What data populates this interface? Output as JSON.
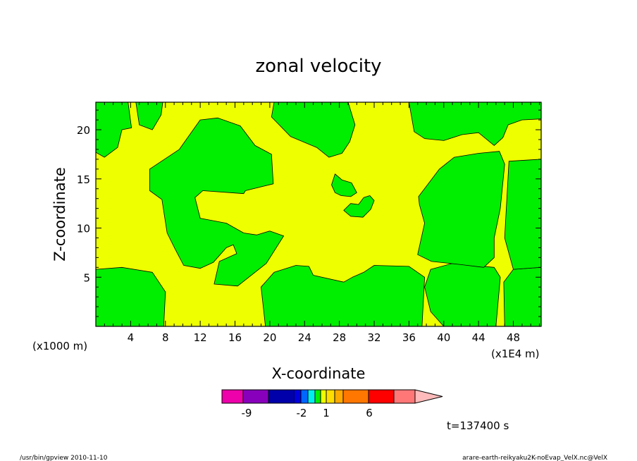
{
  "chart_data": {
    "type": "heatmap",
    "title": "zonal velocity",
    "xlabel": "X-coordinate",
    "ylabel": "Z-coordinate",
    "x_unit": "(x1000 m)",
    "x_scale_note": "(x1E4 m)",
    "x_ticks": [
      "4",
      "8",
      "12",
      "16",
      "20",
      "24",
      "28",
      "32",
      "36",
      "40",
      "44",
      "48"
    ],
    "y_ticks": [
      "5",
      "10",
      "15",
      "20"
    ],
    "xlim": [
      0,
      51.2
    ],
    "ylim": [
      0,
      22.8
    ],
    "background_color": "#eeff00",
    "regions_color": "#00ee00",
    "regions": [
      {
        "range": "0 to 1",
        "points": [
          [
            0,
            0
          ],
          [
            7.8,
            0
          ],
          [
            8,
            3.5
          ],
          [
            6.5,
            5.5
          ],
          [
            3,
            6
          ],
          [
            0,
            5.8
          ]
        ]
      },
      {
        "range": "0 to 1",
        "points": [
          [
            0,
            22.8
          ],
          [
            0,
            17.7
          ],
          [
            1,
            17.2
          ],
          [
            2.5,
            18.2
          ],
          [
            3,
            20
          ],
          [
            4.1,
            20.2
          ],
          [
            3.7,
            22.8
          ]
        ]
      },
      {
        "range": "0 to 1",
        "points": [
          [
            7.7,
            22.8
          ],
          [
            7.5,
            21.5
          ],
          [
            6.5,
            20
          ],
          [
            5,
            20.5
          ],
          [
            4.6,
            22.8
          ]
        ]
      },
      {
        "range": "0 to 1",
        "points": [
          [
            20,
            0
          ],
          [
            37.5,
            0
          ],
          [
            37.8,
            5
          ],
          [
            36,
            6.1
          ],
          [
            32,
            6.2
          ],
          [
            30.8,
            5.5
          ],
          [
            29.5,
            5
          ],
          [
            28.5,
            4.5
          ],
          [
            25,
            5.2
          ],
          [
            24.5,
            6.1
          ],
          [
            23,
            6.2
          ],
          [
            20.5,
            5.5
          ],
          [
            19,
            4
          ],
          [
            19.5,
            0
          ]
        ]
      },
      {
        "range": "0 to 1",
        "points": [
          [
            40,
            0
          ],
          [
            38.5,
            1.5
          ],
          [
            37.8,
            4
          ],
          [
            38.5,
            5.8
          ],
          [
            41,
            6.4
          ],
          [
            45.8,
            6
          ],
          [
            46.5,
            5
          ],
          [
            46,
            0
          ]
        ]
      },
      {
        "range": "0 to 1",
        "points": [
          [
            47,
            0
          ],
          [
            51.2,
            0
          ],
          [
            51.2,
            6
          ],
          [
            48,
            5.8
          ],
          [
            46.9,
            4.5
          ]
        ]
      },
      {
        "range": "0 to 1",
        "points": [
          [
            12,
            21
          ],
          [
            9.6,
            18
          ],
          [
            6.2,
            16
          ],
          [
            6.2,
            13.8
          ],
          [
            7.6,
            12.9
          ],
          [
            8.2,
            9.5
          ],
          [
            9.1,
            7.9
          ],
          [
            10.1,
            6.2
          ],
          [
            12,
            5.9
          ],
          [
            13.5,
            6.5
          ],
          [
            15,
            8
          ],
          [
            15.8,
            8.3
          ],
          [
            16.2,
            7.4
          ],
          [
            14.2,
            6.6
          ],
          [
            13.6,
            4.3
          ],
          [
            16.3,
            4.1
          ],
          [
            19.6,
            6.4
          ],
          [
            21.6,
            9.2
          ],
          [
            20,
            9.7
          ],
          [
            18.5,
            9.3
          ],
          [
            17,
            9.5
          ],
          [
            15,
            10.5
          ],
          [
            12,
            11
          ],
          [
            11.4,
            13.1
          ],
          [
            12.3,
            13.8
          ],
          [
            17,
            13.5
          ],
          [
            17.2,
            13.8
          ],
          [
            20.4,
            14.5
          ],
          [
            20.2,
            17.5
          ],
          [
            18.3,
            18.4
          ],
          [
            16.6,
            20.4
          ],
          [
            14,
            21.2
          ]
        ]
      },
      {
        "range": "0 to 1",
        "points": [
          [
            20.5,
            22.8
          ],
          [
            20.2,
            21.3
          ],
          [
            22.4,
            19.3
          ],
          [
            25.4,
            18.2
          ],
          [
            26.8,
            17.2
          ],
          [
            28.3,
            17.6
          ],
          [
            29.2,
            18.8
          ],
          [
            29.8,
            20.5
          ],
          [
            29,
            22.8
          ]
        ]
      },
      {
        "range": "0 to 1",
        "points": [
          [
            36,
            22.8
          ],
          [
            36.6,
            19.8
          ],
          [
            37.8,
            19.1
          ],
          [
            40,
            18.9
          ],
          [
            42.1,
            19.5
          ],
          [
            44,
            19.7
          ],
          [
            45.8,
            18.4
          ],
          [
            46.8,
            19.2
          ],
          [
            47.4,
            20.5
          ],
          [
            49,
            21
          ],
          [
            51.2,
            21.1
          ],
          [
            51.2,
            22.8
          ]
        ]
      },
      {
        "range": "0 to 1",
        "points": [
          [
            27.5,
            15.5
          ],
          [
            28.3,
            14.9
          ],
          [
            29.4,
            14.6
          ],
          [
            30,
            13.6
          ],
          [
            29.3,
            13.2
          ],
          [
            28.2,
            13.3
          ],
          [
            27.5,
            13.6
          ],
          [
            27.1,
            14.4
          ]
        ]
      },
      {
        "range": "0 to 1",
        "points": [
          [
            29.3,
            11.2
          ],
          [
            30.7,
            11.1
          ],
          [
            31.6,
            11.9
          ],
          [
            32,
            12.8
          ],
          [
            31.5,
            13.3
          ],
          [
            30.8,
            13.1
          ],
          [
            30.2,
            12.4
          ],
          [
            29.3,
            12.5
          ],
          [
            28.5,
            11.8
          ]
        ]
      },
      {
        "range": "0 to 1",
        "points": [
          [
            39.5,
            16
          ],
          [
            41.2,
            17.2
          ],
          [
            44,
            17.6
          ],
          [
            46.4,
            17.8
          ],
          [
            47,
            16.5
          ],
          [
            46.5,
            12
          ],
          [
            45.8,
            9
          ],
          [
            45.8,
            7
          ],
          [
            44.6,
            6
          ],
          [
            41.8,
            6.3
          ],
          [
            38.6,
            6.6
          ],
          [
            37,
            7.3
          ],
          [
            37.8,
            10.5
          ],
          [
            37.2,
            12.4
          ],
          [
            37.1,
            13.2
          ]
        ]
      },
      {
        "range": "0 to 1",
        "points": [
          [
            47.5,
            16.8
          ],
          [
            51.2,
            17
          ],
          [
            51.2,
            6
          ],
          [
            48,
            5.8
          ],
          [
            47,
            9
          ]
        ]
      }
    ],
    "colorbar": {
      "colors": [
        "#ee00aa",
        "#8800bb",
        "#0000aa",
        "#0000dd",
        "#0066ff",
        "#00eeee",
        "#00ee00",
        "#eeff00",
        "#ffdd00",
        "#ffaa00",
        "#ff7700",
        "#ff0000",
        "#ff7777",
        "#ffbbbb"
      ],
      "tick_labels": [
        "-9",
        "-2",
        "1",
        "6"
      ]
    },
    "time_label": "t=137400 s",
    "footer_left": "/usr/bin/gpview  2010-11-10",
    "footer_right": "arare-earth-reikyaku2K-noEvap_VelX.nc@VelX"
  }
}
